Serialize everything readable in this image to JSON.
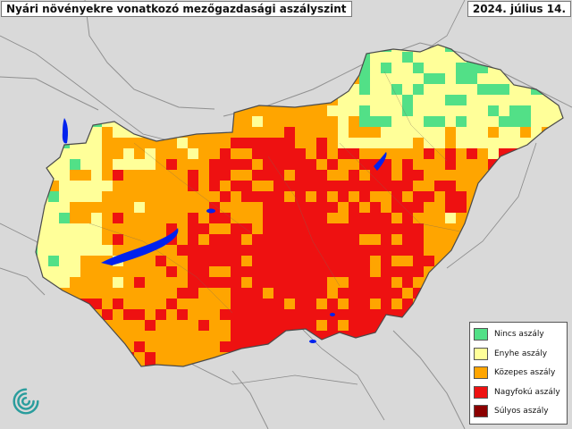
{
  "map": {
    "title": "Nyári növényekre vonatkozó mezőgazdasági aszályszint",
    "date": "2024. július 14."
  },
  "legend": {
    "items": [
      {
        "label": "Nincs aszály",
        "color": "#52e087"
      },
      {
        "label": "Enyhe aszály",
        "color": "#ffff99"
      },
      {
        "label": "Közepes aszály",
        "color": "#ffa500"
      },
      {
        "label": "Nagyfokú aszály",
        "color": "#ee1111"
      },
      {
        "label": "Súlyos aszály",
        "color": "#8b0000"
      }
    ]
  },
  "colors": {
    "background": "#d9d9d9",
    "border": "#555555",
    "water": "#0022ee"
  }
}
